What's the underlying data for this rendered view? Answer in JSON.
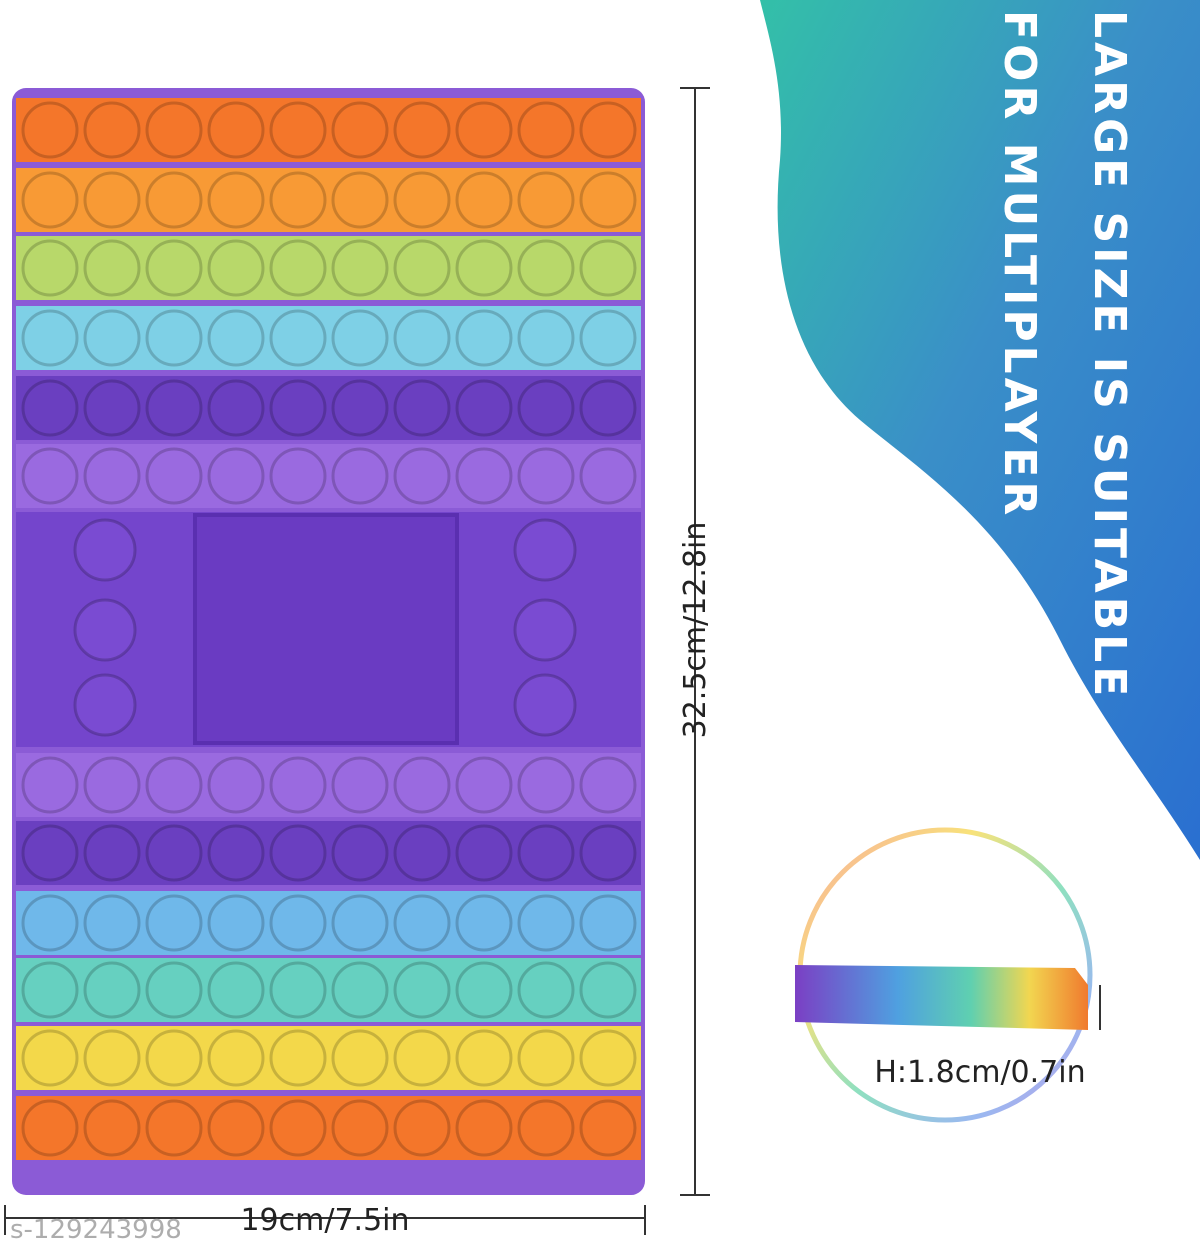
{
  "banner": {
    "line1": "LARGE SIZE IS SUITABLE",
    "line2": "FOR MULTIPLAYER"
  },
  "dimensions": {
    "length": "32.5cm/12.8in",
    "width": "19cm/7.5in",
    "height": "H:1.8cm/0.7in"
  },
  "watermark": "s-129243998"
}
